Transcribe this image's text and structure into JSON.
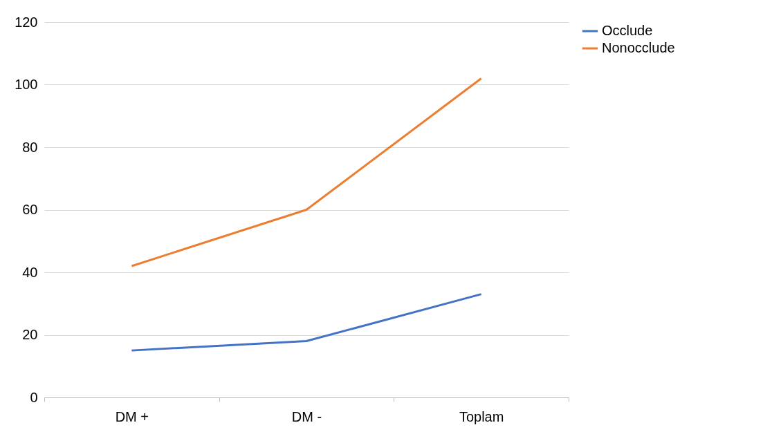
{
  "chart_data": {
    "type": "line",
    "categories": [
      "DM +",
      "DM -",
      "Toplam"
    ],
    "series": [
      {
        "name": "Occlude",
        "color": "#4472c4",
        "values": [
          15,
          18,
          33
        ]
      },
      {
        "name": "Nonocclude",
        "color": "#ed7d31",
        "values": [
          42,
          60,
          102
        ]
      }
    ],
    "ylim": [
      0,
      120
    ],
    "yticks": [
      0,
      20,
      40,
      60,
      80,
      100,
      120
    ],
    "grid": "y",
    "legend": "right",
    "marker": "none",
    "line_style": "solid"
  }
}
